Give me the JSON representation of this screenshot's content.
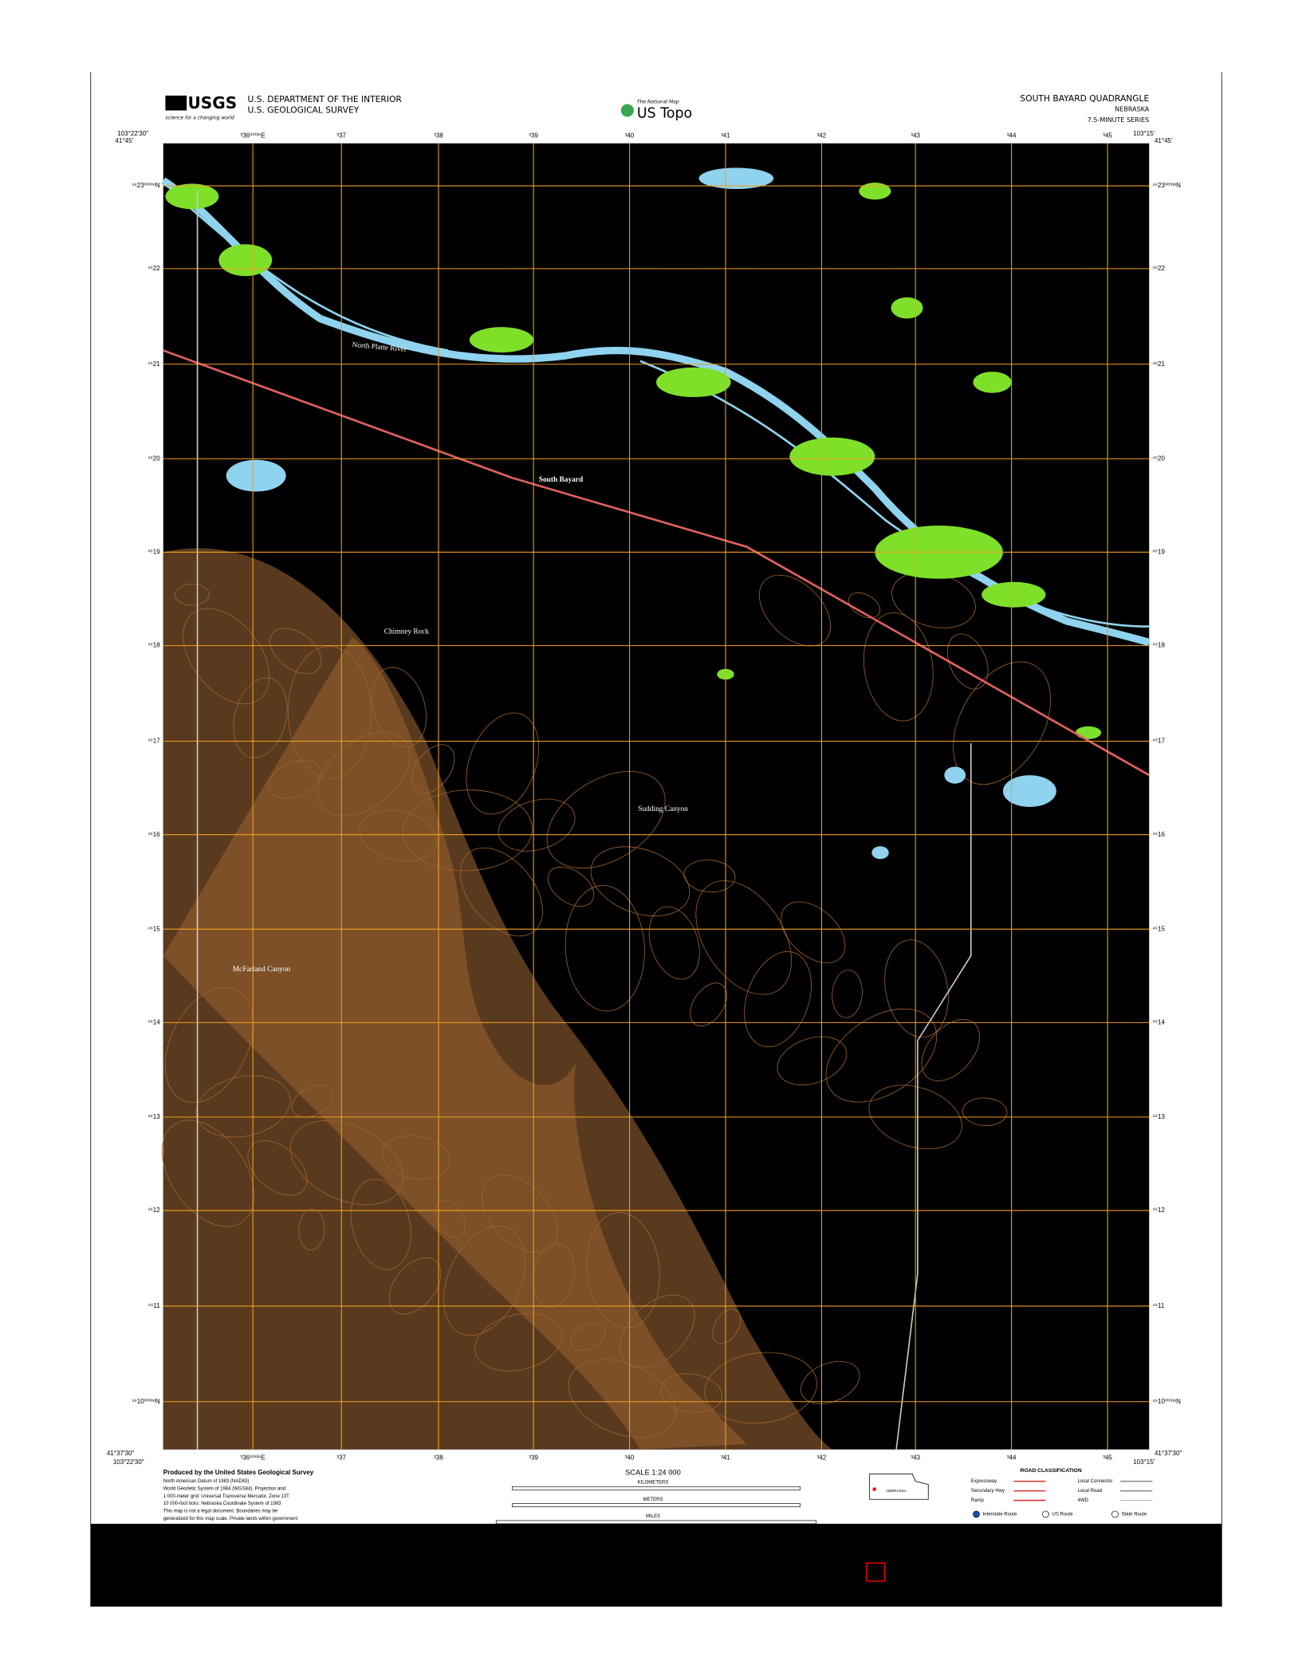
{
  "header": {
    "agency": "USGS",
    "agency_tagline": "science for a changing world",
    "department": "U.S. DEPARTMENT OF THE INTERIOR",
    "survey": "U.S. GEOLOGICAL SURVEY",
    "brand_small": "The National Map",
    "brand": "US Topo",
    "quadrangle": "SOUTH BAYARD QUADRANGLE",
    "state": "NEBRASKA",
    "series": "7.5-MINUTE SERIES"
  },
  "corners": {
    "top_left_lon": "103°22'30\"",
    "top_left_lat": "41°45'",
    "top_right_lat": "41°45'",
    "top_right_lon": "103°15'",
    "bottom_left_lat": "41°37'30\"",
    "bottom_left_lon": "103°22'30\"",
    "bottom_right_lat": "41°37'30\"",
    "bottom_right_lon": "103°15'"
  },
  "eastings": [
    "³36⁰⁰⁰ᵐE",
    "³37",
    "³38",
    "³39",
    "³40",
    "³41",
    "³42",
    "³43",
    "³44",
    "³45"
  ],
  "northings": [
    "⁴⁶23⁰⁰⁰ᵐN",
    "⁴⁶22",
    "⁴⁶21",
    "⁴⁶20",
    "⁴⁶19",
    "⁴⁶18",
    "⁴⁶17",
    "⁴⁶16",
    "⁴⁶15",
    "⁴⁶14",
    "⁴⁶13",
    "⁴⁶12",
    "⁴⁶11",
    "⁴⁶10⁰⁰⁰ᵐN"
  ],
  "places": [
    "South Bayard",
    "North Platte River",
    "Chimney Rock",
    "Sudding Canyon",
    "McFarland Canyon"
  ],
  "footer": {
    "producer": "Produced by the United States Geological Survey",
    "notes": [
      "North American Datum of 1983 (NAD83)",
      "World Geodetic System of 1984 (WGS84). Projection and",
      "1 000-meter grid: Universal Transverse Mercator, Zone 13T",
      "10 000-foot ticks: Nebraska Coordinate System of 1983",
      "This map is not a legal document. Boundaries may be",
      "generalized for this map scale. Private lands within government"
    ],
    "scale": "SCALE 1:24 000",
    "kilometers": "KILOMETERS",
    "meters": "METERS",
    "miles": "MILES",
    "road_title": "ROAD CLASSIFICATION",
    "roads": [
      "Expressway",
      "Secondary Hwy",
      "Ramp",
      "Local Connector",
      "Local Road",
      "4WD"
    ],
    "routes": [
      "Interstate Route",
      "US Route",
      "State Route"
    ],
    "state_label": "NEBRASKA"
  }
}
